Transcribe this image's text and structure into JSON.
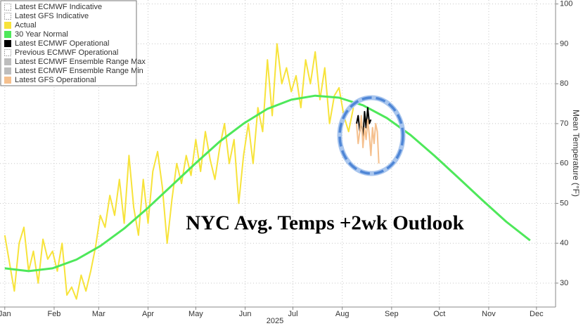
{
  "chart_data": {
    "type": "line",
    "annotation": "NYC Avg. Temps +2wk Outlook",
    "y_axis_label": "Mean Temperature (°F)",
    "x_sublabel": "2025",
    "xlim": [
      -3,
      346
    ],
    "xticks": [
      {
        "value": 0,
        "label": "Jan"
      },
      {
        "value": 31,
        "label": "Feb"
      },
      {
        "value": 59,
        "label": "Mar"
      },
      {
        "value": 90,
        "label": "Apr"
      },
      {
        "value": 120,
        "label": "May"
      },
      {
        "value": 151,
        "label": "Jun"
      },
      {
        "value": 181,
        "label": "Jul"
      },
      {
        "value": 212,
        "label": "Aug"
      },
      {
        "value": 243,
        "label": "Sep"
      },
      {
        "value": 273,
        "label": "Oct"
      },
      {
        "value": 304,
        "label": "Nov"
      },
      {
        "value": 334,
        "label": "Dec"
      }
    ],
    "ylim": [
      24,
      101
    ],
    "yticks": [
      30,
      40,
      50,
      60,
      70,
      80,
      90,
      100
    ],
    "grid": true,
    "legend": "top-left",
    "series": [
      {
        "name": "Latest ECMWF Indicative",
        "x": [],
        "values": []
      },
      {
        "name": "Latest GFS Indicative",
        "x": [],
        "values": []
      },
      {
        "name": "Actual",
        "color": "#f7e33a",
        "x": [
          0,
          3,
          6,
          9,
          12,
          15,
          18,
          21,
          24,
          27,
          30,
          33,
          36,
          39,
          42,
          45,
          48,
          51,
          54,
          57,
          60,
          63,
          66,
          69,
          72,
          75,
          78,
          81,
          84,
          87,
          90,
          93,
          96,
          99,
          102,
          105,
          108,
          111,
          114,
          117,
          120,
          123,
          126,
          129,
          132,
          135,
          138,
          141,
          144,
          147,
          150,
          153,
          156,
          159,
          162,
          165,
          168,
          171,
          174,
          177,
          180,
          183,
          186,
          189,
          192,
          195,
          198,
          201,
          204,
          207,
          210,
          213,
          216,
          219
        ],
        "values": [
          42,
          35,
          28,
          40,
          44,
          33,
          38,
          30,
          41,
          36,
          38,
          33,
          40,
          27,
          29,
          26,
          32,
          28,
          33,
          39,
          47,
          44,
          52,
          47,
          56,
          45,
          62,
          49,
          42,
          56,
          45,
          58,
          63,
          54,
          40,
          51,
          60,
          55,
          62,
          57,
          66,
          58,
          68,
          61,
          56,
          64,
          70,
          60,
          66,
          50,
          62,
          70,
          60,
          74,
          68,
          86,
          72,
          90,
          80,
          84,
          78,
          82,
          74,
          86,
          80,
          88,
          76,
          84,
          70,
          77,
          79,
          72,
          68,
          74
        ]
      },
      {
        "name": "30 Year Normal",
        "color": "#4ee85a",
        "x": [
          0,
          15,
          30,
          45,
          60,
          75,
          90,
          105,
          120,
          135,
          150,
          165,
          180,
          195,
          210,
          225,
          240,
          255,
          270,
          285,
          300,
          315,
          330
        ],
        "values": [
          33.7,
          33.0,
          33.7,
          35.9,
          39.3,
          43.7,
          48.9,
          54.5,
          60.1,
          65.5,
          70.0,
          73.7,
          76.0,
          77.0,
          76.5,
          74.6,
          71.4,
          67.1,
          61.9,
          56.4,
          50.8,
          45.4,
          40.7
        ]
      },
      {
        "name": "Latest ECMWF Operational",
        "color": "#000000",
        "x": [
          221,
          222,
          223,
          224,
          225,
          226,
          227,
          228,
          229,
          230
        ],
        "values": [
          70,
          72,
          68,
          71,
          66,
          73,
          69,
          74,
          70,
          71
        ]
      },
      {
        "name": "Previous ECMWF Operational",
        "x": [],
        "values": []
      },
      {
        "name": "Latest ECMWF Ensemble Range Max",
        "color": "#bdbdbd",
        "x": [],
        "values": []
      },
      {
        "name": "Latest ECMWF Ensemble Range Min",
        "color": "#bdbdbd",
        "x": [],
        "values": []
      },
      {
        "name": "Latest GFS Operational",
        "color": "#f5c08e",
        "x": [
          221,
          222,
          223,
          224,
          225,
          226,
          227,
          228,
          229,
          230,
          231,
          232,
          233,
          234,
          235
        ],
        "values": [
          70,
          65,
          68,
          72,
          64,
          69,
          66,
          71,
          67,
          62,
          69,
          65,
          70,
          68,
          60
        ]
      }
    ]
  }
}
